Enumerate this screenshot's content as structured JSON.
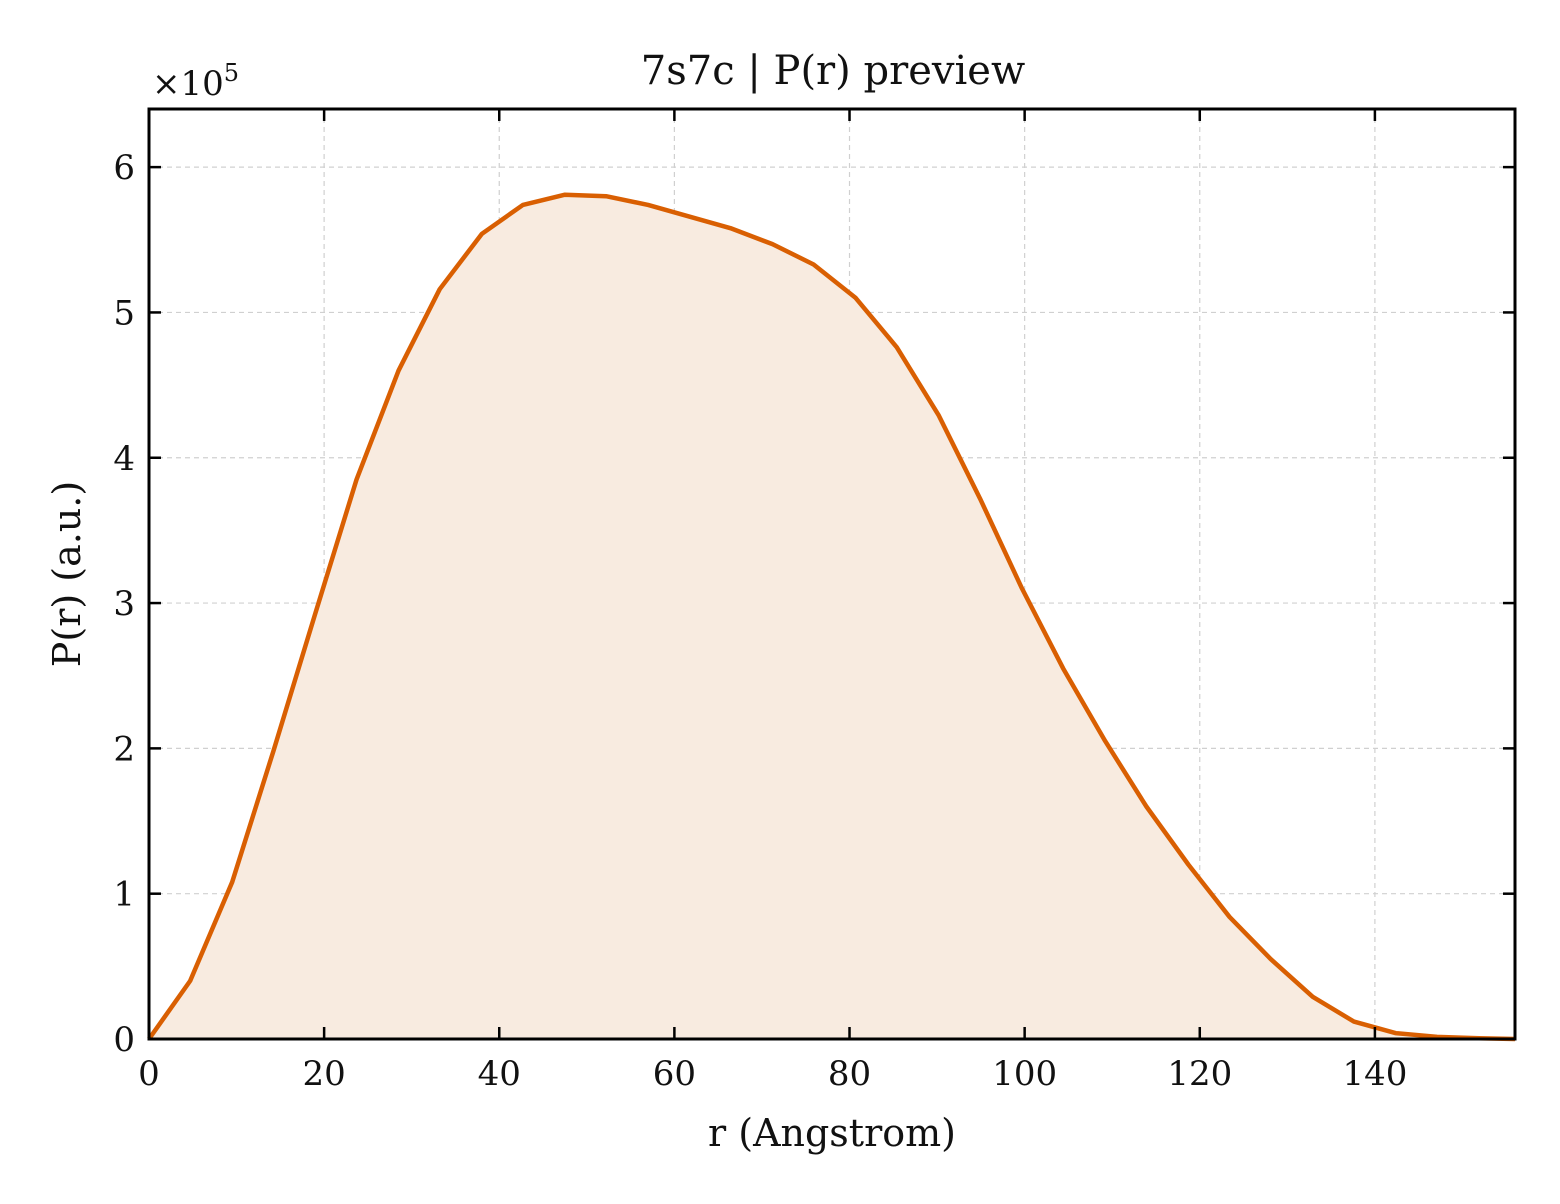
{
  "chart_data": {
    "type": "area",
    "title": "7s7c | P(r) preview",
    "xlabel": "r (Angstrom)",
    "ylabel": "P(r) (a.u.)",
    "y_offset_label": "×10",
    "y_offset_exponent": "5",
    "y_scale": 100000,
    "xlim": [
      0,
      156
    ],
    "ylim": [
      0,
      6.4
    ],
    "x_ticks": [
      "0",
      "20",
      "40",
      "60",
      "80",
      "100",
      "120",
      "140"
    ],
    "y_ticks": [
      "0",
      "1",
      "2",
      "3",
      "4",
      "5",
      "6"
    ],
    "grid": true,
    "grid_style": "dashed",
    "line_color": "#d95f02",
    "fill_color": "#f8ebe0",
    "series": [
      {
        "x": [
          0,
          4.7,
          9.5,
          14.2,
          19,
          23.7,
          28.5,
          33.2,
          38,
          42.7,
          47.5,
          52.2,
          57,
          61.7,
          66.4,
          71.2,
          75.9,
          80.7,
          85.4,
          90.2,
          94.9,
          99.7,
          104.4,
          109.2,
          113.9,
          118.7,
          123.4,
          128.1,
          132.9,
          137.6,
          142.4,
          147.1,
          151.9,
          156
        ],
        "y": [
          0,
          0.4,
          1.08,
          1.98,
          2.93,
          3.85,
          4.6,
          5.16,
          5.54,
          5.74,
          5.81,
          5.8,
          5.74,
          5.66,
          5.58,
          5.47,
          5.33,
          5.1,
          4.76,
          4.29,
          3.72,
          3.1,
          2.55,
          2.05,
          1.6,
          1.2,
          0.84,
          0.55,
          0.29,
          0.12,
          0.04,
          0.015,
          0.005,
          0
        ]
      }
    ]
  }
}
